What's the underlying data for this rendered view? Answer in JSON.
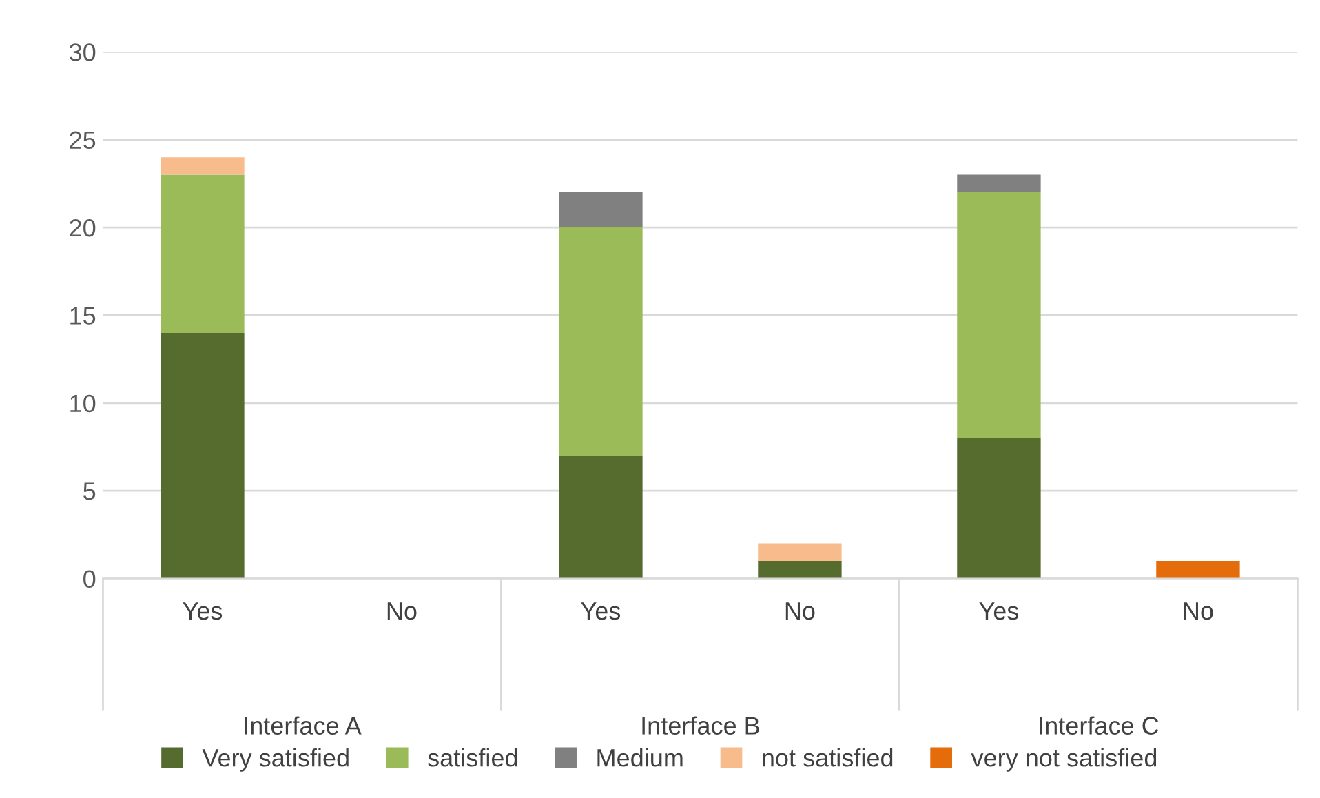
{
  "chart_data": {
    "type": "bar",
    "stacked": true,
    "categories": [
      "Yes",
      "No",
      "Yes",
      "No",
      "Yes",
      "No"
    ],
    "series": [
      {
        "name": "Very satisfied",
        "color": "#566b2e",
        "values": [
          14,
          null,
          7,
          1,
          8,
          null
        ]
      },
      {
        "name": "satisfied",
        "color": "#9bbb59",
        "values": [
          9,
          null,
          13,
          null,
          14,
          null
        ]
      },
      {
        "name": "Medium",
        "color": "#808080",
        "values": [
          null,
          null,
          2,
          null,
          1,
          null
        ]
      },
      {
        "name": "not satisfied",
        "color": "#f8bc8c",
        "values": [
          1,
          null,
          null,
          1,
          null,
          null
        ]
      },
      {
        "name": "very not satisfied",
        "color": "#e46c0a",
        "values": [
          null,
          null,
          null,
          null,
          null,
          1
        ]
      }
    ],
    "annotations": [
      "Interface A",
      "Interface B",
      "Interface C"
    ],
    "ylim": [
      0,
      30
    ],
    "yticks": [
      0,
      5,
      10,
      15,
      20,
      25,
      30
    ],
    "grid": "y",
    "legend": "bottom"
  }
}
